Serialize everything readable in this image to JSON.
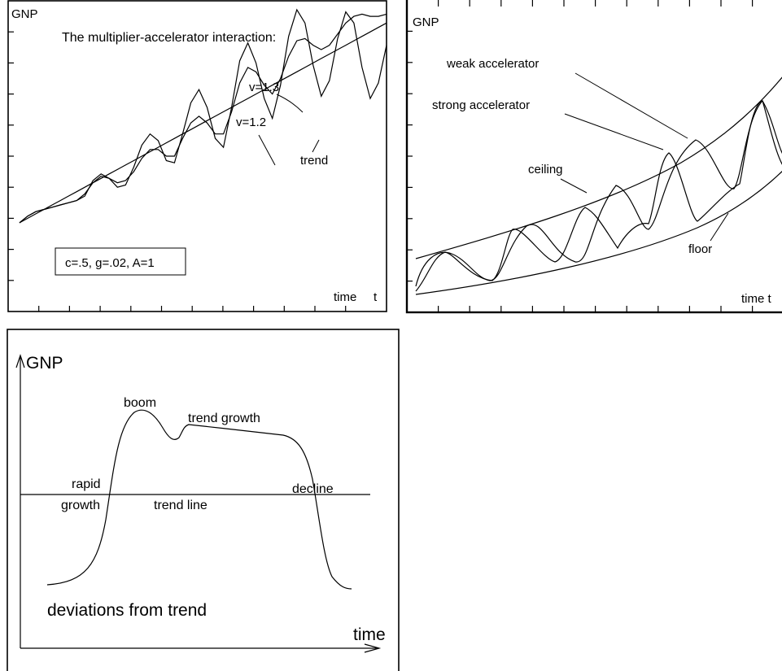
{
  "chart_data": [
    {
      "type": "line",
      "title": "The  multiplier-accelerator interaction:",
      "ylabel": "GNP",
      "xlabel": "time",
      "xlabel_symbol": "t",
      "params_box": "c=.5, g=.02, A=1",
      "xlim": [
        0,
        45
      ],
      "ylim": [
        -4,
        10
      ],
      "x": [
        0,
        1,
        2,
        3,
        4,
        5,
        6,
        7,
        8,
        9,
        10,
        11,
        12,
        13,
        14,
        15,
        16,
        17,
        18,
        19,
        20,
        21,
        22,
        23,
        24,
        25,
        26,
        27,
        28,
        29,
        30,
        31,
        32,
        33,
        34,
        35,
        36,
        37,
        38,
        39,
        40,
        41,
        42,
        43,
        44,
        45
      ],
      "series": [
        {
          "name": "trend",
          "values": [
            0.0,
            0.2,
            0.4,
            0.6,
            0.8,
            1.0,
            1.2,
            1.4,
            1.6,
            1.8,
            2.0,
            2.2,
            2.4,
            2.6,
            2.8,
            3.0,
            3.2,
            3.4,
            3.6,
            3.8,
            4.0,
            4.2,
            4.4,
            4.6,
            4.8,
            5.0,
            5.2,
            5.4,
            5.6,
            5.8,
            6.0,
            6.2,
            6.4,
            6.6,
            6.8,
            7.0,
            7.2,
            7.4,
            7.6,
            7.8,
            8.0,
            8.2,
            8.4,
            8.6,
            8.8,
            9.0
          ]
        },
        {
          "name": "v=1.2",
          "values": [
            0.0,
            0.3,
            0.5,
            0.6,
            0.7,
            0.8,
            0.9,
            1.0,
            1.3,
            1.8,
            2.1,
            2.0,
            1.8,
            1.9,
            2.3,
            2.9,
            3.3,
            3.3,
            3.0,
            3.0,
            3.8,
            4.5,
            4.8,
            4.5,
            4.0,
            4.0,
            5.0,
            6.3,
            7.0,
            6.8,
            6.2,
            5.8,
            6.5,
            7.5,
            8.2,
            8.3,
            8.0,
            7.8,
            8.0,
            8.5,
            9.0,
            9.3,
            9.4,
            9.3,
            9.3,
            9.4
          ]
        },
        {
          "name": "v=1.3",
          "values": [
            0.0,
            0.3,
            0.5,
            0.6,
            0.7,
            0.8,
            0.9,
            1.0,
            1.2,
            1.9,
            2.2,
            2.0,
            1.6,
            1.7,
            2.5,
            3.5,
            4.0,
            3.7,
            2.8,
            2.7,
            4.0,
            5.4,
            6.0,
            5.2,
            3.8,
            3.4,
            5.2,
            7.3,
            8.1,
            7.2,
            5.6,
            4.7,
            6.2,
            8.4,
            9.6,
            9.0,
            7.1,
            5.7,
            6.4,
            8.3,
            9.5,
            9.0,
            7.0,
            5.6,
            6.3,
            8.0
          ]
        }
      ],
      "annotations": [
        "v=1.3",
        "v=1.2",
        "trend"
      ]
    },
    {
      "type": "line",
      "ylabel": "GNP",
      "xlabel": "time t",
      "annotations": [
        "weak accelerator",
        "strong accelerator",
        "ceiling",
        "floor"
      ]
    },
    {
      "type": "line",
      "ylabel": "GNP",
      "xlabel": "time",
      "caption": "deviations from trend",
      "trend_label": "trend line",
      "annotations": [
        "boom",
        "trend growth",
        "rapid",
        "growth",
        "decline"
      ]
    }
  ]
}
